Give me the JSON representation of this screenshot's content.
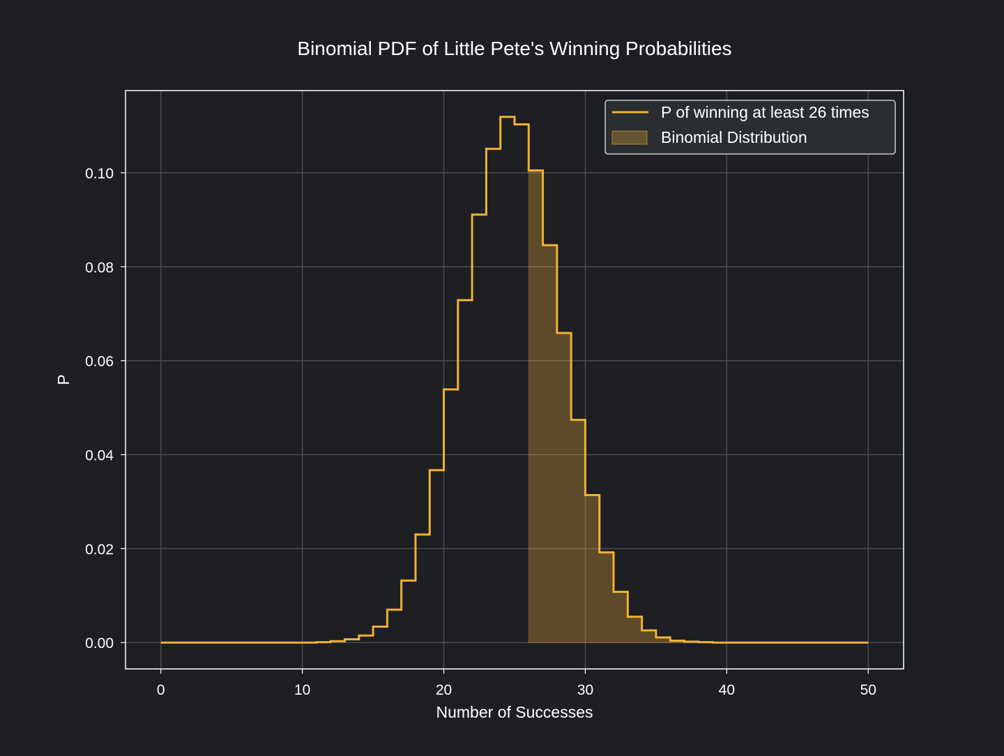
{
  "chart_data": {
    "type": "line",
    "title": "Binomial PDF of Little Pete's Winning Probabilities",
    "xlabel": "Number of Successes",
    "ylabel": "P",
    "xlim": [
      -2.5,
      52.5
    ],
    "ylim": [
      -0.0056,
      0.1175
    ],
    "xticks": [
      0,
      10,
      20,
      30,
      40,
      50
    ],
    "xtick_labels": [
      "0",
      "10",
      "20",
      "30",
      "40",
      "50"
    ],
    "yticks": [
      0.0,
      0.02,
      0.04,
      0.06,
      0.08,
      0.1
    ],
    "ytick_labels": [
      "0.00",
      "0.02",
      "0.04",
      "0.06",
      "0.08",
      "0.10"
    ],
    "grid": true,
    "legend_position": "top-right",
    "x": [
      0,
      1,
      2,
      3,
      4,
      5,
      6,
      7,
      8,
      9,
      10,
      11,
      12,
      13,
      14,
      15,
      16,
      17,
      18,
      19,
      20,
      21,
      22,
      23,
      24,
      25,
      26,
      27,
      28,
      29,
      30,
      31,
      32,
      33,
      34,
      35,
      36,
      37,
      38,
      39,
      40,
      41,
      42,
      43,
      44,
      45,
      46,
      47,
      48,
      49,
      50
    ],
    "series": [
      {
        "name": "P of winning at least 26 times",
        "style": "step-post line",
        "color": "#f2b134",
        "values": [
          0,
          0,
          0,
          0,
          0,
          0,
          0,
          0,
          0,
          0,
          0,
          0.0001,
          0.0003,
          0.0007,
          0.0015,
          0.0034,
          0.007,
          0.0132,
          0.023,
          0.0367,
          0.0539,
          0.0729,
          0.0911,
          0.1051,
          0.1119,
          0.1103,
          0.1005,
          0.0846,
          0.0659,
          0.0474,
          0.0314,
          0.0192,
          0.0108,
          0.0055,
          0.0026,
          0.0011,
          0.0004,
          0.0002,
          0.0001,
          0,
          0,
          0,
          0,
          0,
          0,
          0,
          0,
          0,
          0,
          0,
          0
        ]
      },
      {
        "name": "Binomial Distribution",
        "style": "step-post filled area",
        "color": "#f2b134",
        "fill_opacity": 0.3,
        "x_from": 26
      }
    ]
  }
}
